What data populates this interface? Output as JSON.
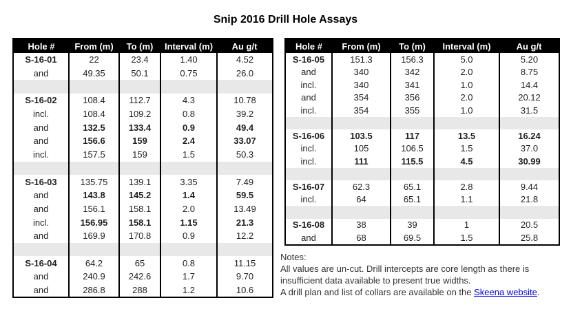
{
  "title": "Snip 2016 Drill Hole Assays",
  "columns": [
    "Hole #",
    "From (m)",
    "To (m)",
    "Interval (m)",
    "Au g/t"
  ],
  "left_table": {
    "rows": [
      {
        "cells": [
          "S-16-01",
          "22",
          "23.4",
          "1.40",
          "4.52"
        ],
        "bold_label": true
      },
      {
        "cells": [
          "and",
          "49.35",
          "50.1",
          "0.75",
          "26.0"
        ]
      },
      {
        "spacer": true
      },
      {
        "cells": [
          "S-16-02",
          "108.4",
          "112.7",
          "4.3",
          "10.78"
        ],
        "bold_label": true
      },
      {
        "cells": [
          "incl.",
          "108.4",
          "109.2",
          "0.8",
          "39.2"
        ]
      },
      {
        "cells": [
          "and",
          "132.5",
          "133.4",
          "0.9",
          "49.4"
        ],
        "bold_values": true
      },
      {
        "cells": [
          "and",
          "156.6",
          "159",
          "2.4",
          "33.07"
        ],
        "bold_values": true
      },
      {
        "cells": [
          "incl.",
          "157.5",
          "159",
          "1.5",
          "50.3"
        ]
      },
      {
        "spacer": true
      },
      {
        "cells": [
          "S-16-03",
          "135.75",
          "139.1",
          "3.35",
          "7.49"
        ],
        "bold_label": true
      },
      {
        "cells": [
          "and",
          "143.8",
          "145.2",
          "1.4",
          "59.5"
        ],
        "bold_values": true
      },
      {
        "cells": [
          "and",
          "156.1",
          "158.1",
          "2.0",
          "13.49"
        ]
      },
      {
        "cells": [
          "incl.",
          "156.95",
          "158.1",
          "1.15",
          "21.3"
        ],
        "bold_values": true
      },
      {
        "cells": [
          "and",
          "169.9",
          "170.8",
          "0.9",
          "12.2"
        ]
      },
      {
        "spacer": true
      },
      {
        "cells": [
          "S-16-04",
          "64.2",
          "65",
          "0.8",
          "11.15"
        ],
        "bold_label": true
      },
      {
        "cells": [
          "and",
          "240.9",
          "242.6",
          "1.7",
          "9.70"
        ]
      },
      {
        "cells": [
          "and",
          "286.8",
          "288",
          "1.2",
          "10.6"
        ]
      }
    ]
  },
  "right_table": {
    "rows": [
      {
        "cells": [
          "S-16-05",
          "151.3",
          "156.3",
          "5.0",
          "5.20"
        ],
        "bold_label": true
      },
      {
        "cells": [
          "and",
          "340",
          "342",
          "2.0",
          "8.75"
        ]
      },
      {
        "cells": [
          "incl.",
          "340",
          "341",
          "1.0",
          "14.4"
        ]
      },
      {
        "cells": [
          "and",
          "354",
          "356",
          "2.0",
          "20.12"
        ]
      },
      {
        "cells": [
          "incl.",
          "354",
          "355",
          "1.0",
          "31.5"
        ]
      },
      {
        "spacer": true
      },
      {
        "cells": [
          "S-16-06",
          "103.5",
          "117",
          "13.5",
          "16.24"
        ],
        "bold_label": true,
        "bold_values": true
      },
      {
        "cells": [
          "incl.",
          "105",
          "106.5",
          "1.5",
          "37.0"
        ]
      },
      {
        "cells": [
          "incl.",
          "111",
          "115.5",
          "4.5",
          "30.99"
        ],
        "bold_values": true
      },
      {
        "spacer": true
      },
      {
        "cells": [
          "S-16-07",
          "62.3",
          "65.1",
          "2.8",
          "9.44"
        ],
        "bold_label": true
      },
      {
        "cells": [
          "incl.",
          "64",
          "65.1",
          "1.1",
          "21.8"
        ]
      },
      {
        "spacer": true
      },
      {
        "cells": [
          "S-16-08",
          "38",
          "39",
          "1",
          "20.5"
        ],
        "bold_label": true
      },
      {
        "cells": [
          "and",
          "68",
          "69.5",
          "1.5",
          "25.8"
        ]
      }
    ]
  },
  "notes": {
    "heading": "Notes:",
    "lines": [
      "All values are un-cut. Drill intercepts are core length as there is",
      "insufficient data available to present true widths."
    ],
    "link_line": {
      "prefix": "A drill plan and list of collars are available on the ",
      "link_text": "Skeena website",
      "suffix": "."
    }
  },
  "colors": {
    "header_bg": "#000000",
    "header_text": "#ffffff",
    "spacer_bg": "#e8e8e8",
    "link": "#0000ee"
  }
}
